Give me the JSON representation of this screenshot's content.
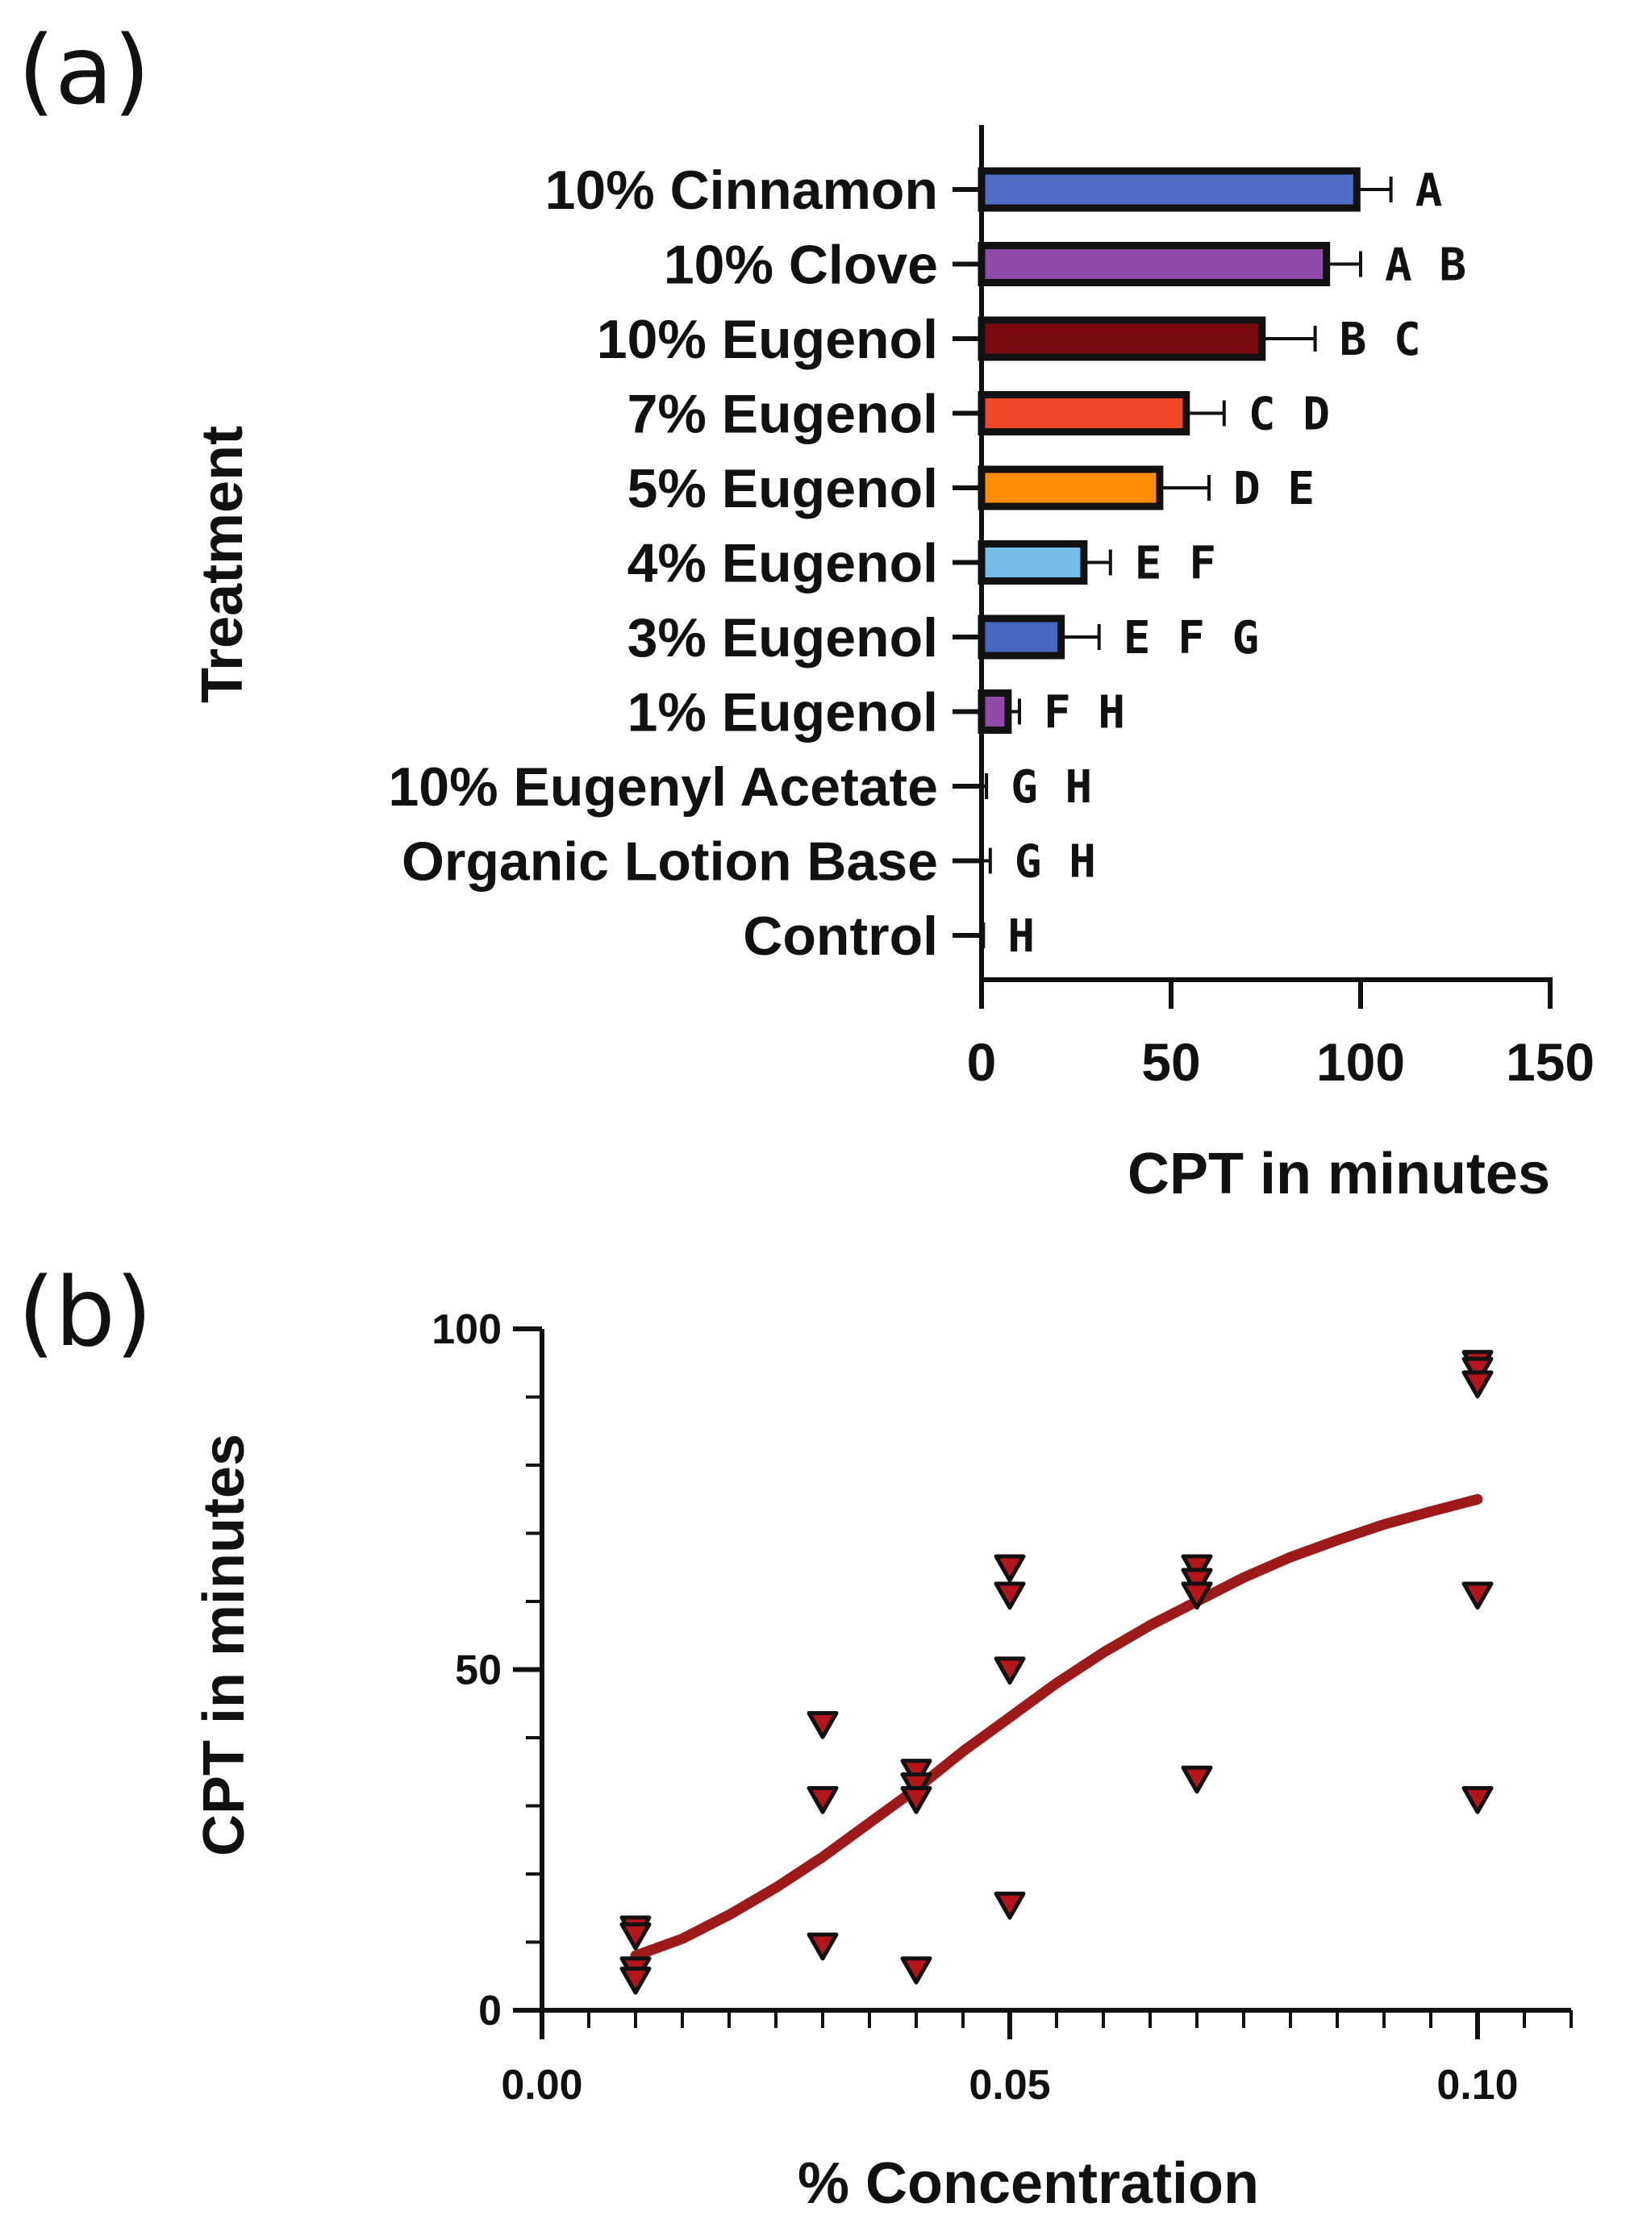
{
  "chart_data": [
    {
      "panel": "(a)",
      "type": "bar",
      "orientation": "horizontal",
      "ylabel": "Treatment",
      "xlabel": "CPT in minutes",
      "xlim": [
        0,
        150
      ],
      "xticks": [
        0,
        50,
        100,
        150
      ],
      "categories": [
        "10% Cinnamon",
        "10% Clove",
        "10% Eugenol",
        "7% Eugenol",
        "5% Eugenol",
        "4% Eugenol",
        "3% Eugenol",
        "1% Eugenol",
        "10% Eugenyl Acetate",
        "Organic Lotion Base",
        "Control"
      ],
      "values": [
        99,
        91,
        74,
        54,
        47,
        27,
        21,
        7,
        0.3,
        0.8,
        0
      ],
      "errors": [
        9,
        9,
        14,
        10,
        13,
        7,
        10,
        3,
        1,
        1.5,
        0.5
      ],
      "significance": [
        "A",
        "A B",
        "B C",
        "C D",
        "D E",
        "E F",
        "E F G",
        "F H",
        "G H",
        "G H",
        "H"
      ],
      "colors": [
        "#4F6DC4",
        "#8E4AA6",
        "#7A0A0E",
        "#F2482A",
        "#FF8C05",
        "#74BDE8",
        "#4667BE",
        "#8E4AA6",
        "#333333",
        "#333333",
        "#333333"
      ]
    },
    {
      "panel": "(b)",
      "type": "scatter",
      "xlabel": "% Concentration",
      "ylabel": "CPT in minutes",
      "xlim": [
        0,
        0.11
      ],
      "ylim": [
        0,
        100
      ],
      "xticks": [
        "0.00",
        "0.05",
        "0.10"
      ],
      "yticks": [
        "0",
        "50",
        "100"
      ],
      "marker": "inverted-triangle",
      "marker_color": "#B3151B",
      "fit_color": "#9E1A1A",
      "points": [
        [
          0.01,
          12
        ],
        [
          0.01,
          11
        ],
        [
          0.01,
          6
        ],
        [
          0.01,
          4.5
        ],
        [
          0.03,
          42
        ],
        [
          0.03,
          31
        ],
        [
          0.03,
          9.5
        ],
        [
          0.04,
          35
        ],
        [
          0.04,
          33
        ],
        [
          0.04,
          31
        ],
        [
          0.04,
          6
        ],
        [
          0.05,
          65
        ],
        [
          0.05,
          61
        ],
        [
          0.05,
          50
        ],
        [
          0.05,
          15.5
        ],
        [
          0.07,
          65
        ],
        [
          0.07,
          63
        ],
        [
          0.07,
          61
        ],
        [
          0.07,
          34
        ],
        [
          0.1,
          95
        ],
        [
          0.1,
          94
        ],
        [
          0.1,
          92
        ],
        [
          0.1,
          61
        ],
        [
          0.1,
          31
        ]
      ],
      "fit_curve": [
        [
          0.01,
          8
        ],
        [
          0.015,
          10.5
        ],
        [
          0.02,
          14
        ],
        [
          0.025,
          18
        ],
        [
          0.03,
          22.5
        ],
        [
          0.035,
          27.5
        ],
        [
          0.04,
          32.5
        ],
        [
          0.045,
          38
        ],
        [
          0.05,
          43
        ],
        [
          0.055,
          48
        ],
        [
          0.06,
          52.5
        ],
        [
          0.065,
          56.5
        ],
        [
          0.07,
          60
        ],
        [
          0.075,
          63.5
        ],
        [
          0.08,
          66.5
        ],
        [
          0.085,
          69
        ],
        [
          0.09,
          71.3
        ],
        [
          0.095,
          73.2
        ],
        [
          0.1,
          75
        ]
      ]
    }
  ]
}
